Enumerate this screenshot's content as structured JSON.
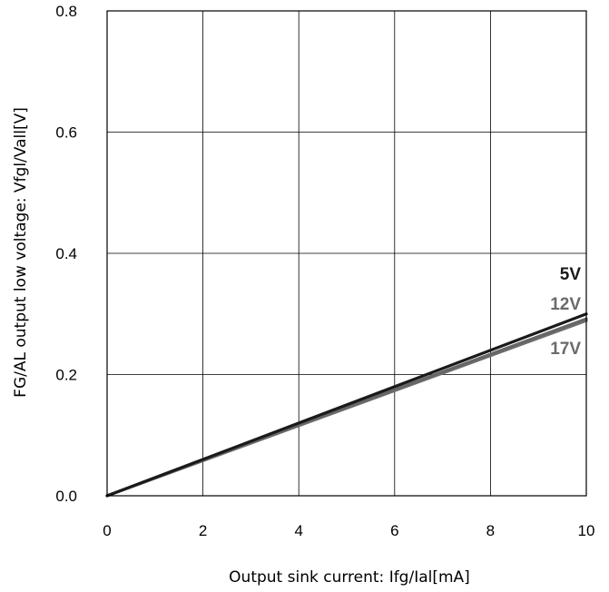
{
  "chart_data": {
    "type": "line",
    "title": "",
    "xlabel": "Output sink current: Ifg/Ial[mA]",
    "ylabel": "FG/AL output low voltage: Vfgl/Vall[V]",
    "xlim": [
      0,
      10
    ],
    "ylim": [
      0,
      0.8
    ],
    "xticks": [
      "0",
      "2",
      "4",
      "6",
      "8",
      "10"
    ],
    "yticks": [
      "0.0",
      "0.2",
      "0.4",
      "0.6",
      "0.8"
    ],
    "grid": true,
    "legend": "inline labels at right end of lines",
    "series": [
      {
        "name": "5V",
        "color": "#1a1a1a",
        "x": [
          0,
          10
        ],
        "y": [
          0,
          0.3
        ]
      },
      {
        "name": "12V",
        "color": "#666666",
        "x": [
          0,
          10
        ],
        "y": [
          0,
          0.292
        ]
      },
      {
        "name": "17V",
        "color": "#6e6e6e",
        "x": [
          0,
          10
        ],
        "y": [
          0,
          0.289
        ]
      }
    ]
  }
}
